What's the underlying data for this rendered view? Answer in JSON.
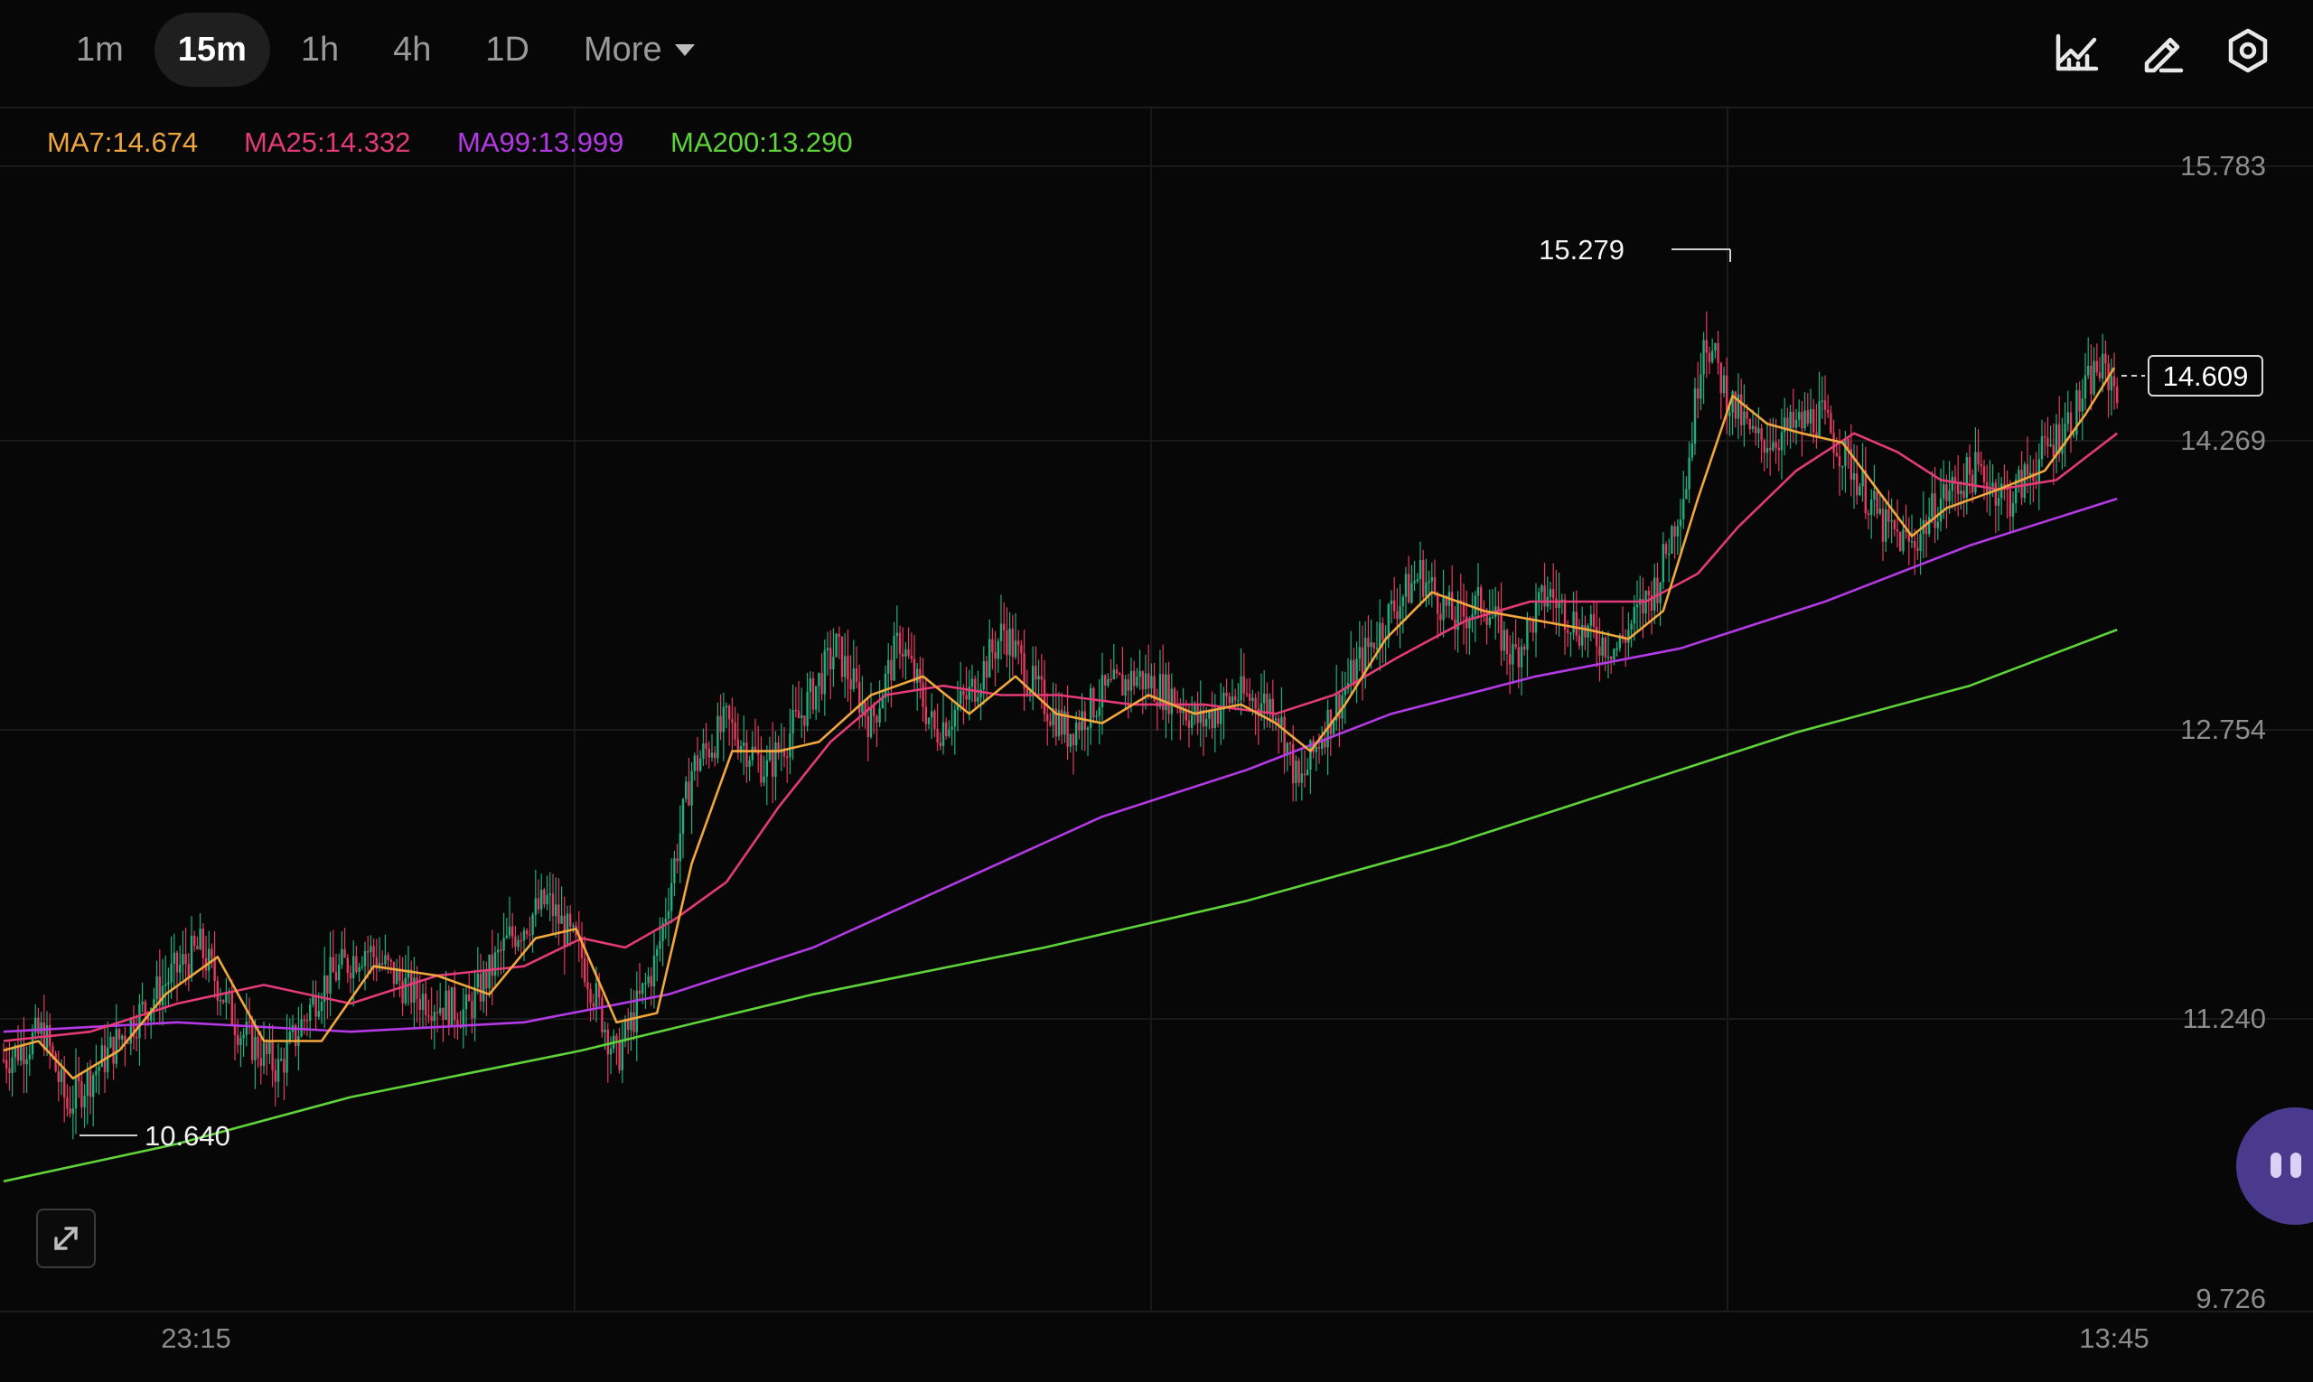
{
  "toolbar": {
    "timeframes": [
      "1m",
      "15m",
      "1h",
      "4h",
      "1D"
    ],
    "active": "15m",
    "more_label": "More",
    "icons": [
      "indicators-icon",
      "draw-icon",
      "settings-icon"
    ]
  },
  "colors": {
    "background": "#070707",
    "up": "#1fae7e",
    "down": "#e5395f",
    "ma7": "#f0a73c",
    "ma25": "#e33a78",
    "ma99": "#b43ae6",
    "ma200": "#5fd33a",
    "grid": "#1a1a1a"
  },
  "chart_data": {
    "type": "candlestick",
    "interval": "15m",
    "legend": [
      {
        "name": "MA7",
        "value": "14.674",
        "label": "MA7:14.674",
        "color": "#f0a73c"
      },
      {
        "name": "MA25",
        "value": "14.332",
        "label": "MA25:14.332",
        "color": "#e33a78"
      },
      {
        "name": "MA99",
        "value": "13.999",
        "label": "MA99:13.999",
        "color": "#b43ae6"
      },
      {
        "name": "MA200",
        "value": "13.290",
        "label": "MA200:13.290",
        "color": "#5fd33a"
      }
    ],
    "y_ticks": [
      "15.783",
      "14.269",
      "12.754",
      "11.240",
      "9.726"
    ],
    "ylim": [
      9.726,
      15.783
    ],
    "x_ticks": [
      "23:15",
      "13:45"
    ],
    "last_price": "14.609",
    "high_label": "15.279",
    "low_label": "10.640",
    "grid": true,
    "price_path": [
      [
        0,
        11.0
      ],
      [
        14,
        11.15
      ],
      [
        22,
        10.75
      ],
      [
        42,
        11.15
      ],
      [
        58,
        11.45
      ],
      [
        68,
        11.6
      ],
      [
        82,
        11.15
      ],
      [
        95,
        10.95
      ],
      [
        110,
        11.4
      ],
      [
        125,
        11.6
      ],
      [
        142,
        11.35
      ],
      [
        160,
        11.25
      ],
      [
        175,
        11.65
      ],
      [
        188,
        11.85
      ],
      [
        200,
        11.55
      ],
      [
        212,
        11.0
      ],
      [
        226,
        11.55
      ],
      [
        238,
        12.55
      ],
      [
        250,
        12.8
      ],
      [
        264,
        12.55
      ],
      [
        276,
        12.85
      ],
      [
        288,
        13.2
      ],
      [
        300,
        12.8
      ],
      [
        310,
        13.25
      ],
      [
        322,
        12.75
      ],
      [
        334,
        12.95
      ],
      [
        346,
        13.3
      ],
      [
        356,
        13.0
      ],
      [
        368,
        12.75
      ],
      [
        380,
        12.95
      ],
      [
        392,
        13.05
      ],
      [
        404,
        12.95
      ],
      [
        414,
        12.8
      ],
      [
        426,
        12.95
      ],
      [
        440,
        12.9
      ],
      [
        448,
        12.45
      ],
      [
        456,
        12.75
      ],
      [
        468,
        13.1
      ],
      [
        480,
        13.4
      ],
      [
        490,
        13.6
      ],
      [
        502,
        13.35
      ],
      [
        512,
        13.45
      ],
      [
        522,
        13.15
      ],
      [
        534,
        13.5
      ],
      [
        546,
        13.3
      ],
      [
        558,
        13.2
      ],
      [
        572,
        13.55
      ],
      [
        582,
        14.1
      ],
      [
        588,
        14.9
      ],
      [
        596,
        14.55
      ],
      [
        606,
        14.3
      ],
      [
        616,
        14.35
      ],
      [
        628,
        14.45
      ],
      [
        640,
        14.15
      ],
      [
        650,
        13.85
      ],
      [
        660,
        13.75
      ],
      [
        670,
        14.0
      ],
      [
        682,
        14.15
      ],
      [
        694,
        14.0
      ],
      [
        706,
        14.25
      ],
      [
        716,
        14.45
      ],
      [
        724,
        14.7
      ],
      [
        731,
        14.61
      ]
    ],
    "ma7": [
      [
        0,
        11.05
      ],
      [
        12,
        11.1
      ],
      [
        24,
        10.9
      ],
      [
        40,
        11.05
      ],
      [
        56,
        11.35
      ],
      [
        74,
        11.55
      ],
      [
        90,
        11.1
      ],
      [
        110,
        11.1
      ],
      [
        128,
        11.5
      ],
      [
        150,
        11.45
      ],
      [
        168,
        11.35
      ],
      [
        184,
        11.65
      ],
      [
        198,
        11.7
      ],
      [
        212,
        11.2
      ],
      [
        226,
        11.25
      ],
      [
        238,
        12.05
      ],
      [
        252,
        12.65
      ],
      [
        268,
        12.65
      ],
      [
        282,
        12.7
      ],
      [
        300,
        12.95
      ],
      [
        318,
        13.05
      ],
      [
        334,
        12.85
      ],
      [
        350,
        13.05
      ],
      [
        364,
        12.85
      ],
      [
        380,
        12.8
      ],
      [
        396,
        12.95
      ],
      [
        412,
        12.85
      ],
      [
        428,
        12.9
      ],
      [
        440,
        12.8
      ],
      [
        452,
        12.65
      ],
      [
        464,
        12.9
      ],
      [
        478,
        13.25
      ],
      [
        494,
        13.5
      ],
      [
        512,
        13.4
      ],
      [
        530,
        13.35
      ],
      [
        548,
        13.3
      ],
      [
        562,
        13.25
      ],
      [
        574,
        13.4
      ],
      [
        586,
        14.0
      ],
      [
        598,
        14.55
      ],
      [
        610,
        14.4
      ],
      [
        622,
        14.35
      ],
      [
        636,
        14.3
      ],
      [
        648,
        14.05
      ],
      [
        660,
        13.8
      ],
      [
        672,
        13.95
      ],
      [
        690,
        14.05
      ],
      [
        706,
        14.15
      ],
      [
        720,
        14.45
      ],
      [
        730,
        14.7
      ]
    ],
    "ma25": [
      [
        0,
        11.1
      ],
      [
        30,
        11.15
      ],
      [
        60,
        11.3
      ],
      [
        90,
        11.4
      ],
      [
        120,
        11.3
      ],
      [
        150,
        11.45
      ],
      [
        180,
        11.5
      ],
      [
        200,
        11.65
      ],
      [
        215,
        11.6
      ],
      [
        232,
        11.75
      ],
      [
        250,
        11.95
      ],
      [
        268,
        12.35
      ],
      [
        286,
        12.7
      ],
      [
        305,
        12.95
      ],
      [
        325,
        13.0
      ],
      [
        345,
        12.95
      ],
      [
        365,
        12.95
      ],
      [
        390,
        12.9
      ],
      [
        415,
        12.9
      ],
      [
        440,
        12.85
      ],
      [
        460,
        12.95
      ],
      [
        482,
        13.15
      ],
      [
        506,
        13.35
      ],
      [
        528,
        13.45
      ],
      [
        548,
        13.45
      ],
      [
        568,
        13.45
      ],
      [
        586,
        13.6
      ],
      [
        600,
        13.85
      ],
      [
        620,
        14.15
      ],
      [
        640,
        14.35
      ],
      [
        655,
        14.25
      ],
      [
        670,
        14.1
      ],
      [
        690,
        14.05
      ],
      [
        710,
        14.1
      ],
      [
        731,
        14.35
      ]
    ],
    "ma99": [
      [
        0,
        11.15
      ],
      [
        60,
        11.2
      ],
      [
        120,
        11.15
      ],
      [
        180,
        11.2
      ],
      [
        230,
        11.35
      ],
      [
        280,
        11.6
      ],
      [
        330,
        11.95
      ],
      [
        380,
        12.3
      ],
      [
        430,
        12.55
      ],
      [
        480,
        12.85
      ],
      [
        530,
        13.05
      ],
      [
        580,
        13.2
      ],
      [
        630,
        13.45
      ],
      [
        680,
        13.75
      ],
      [
        731,
        14.0
      ]
    ],
    "ma200": [
      [
        0,
        10.35
      ],
      [
        60,
        10.55
      ],
      [
        120,
        10.8
      ],
      [
        200,
        11.05
      ],
      [
        280,
        11.35
      ],
      [
        360,
        11.6
      ],
      [
        430,
        11.85
      ],
      [
        500,
        12.15
      ],
      [
        560,
        12.45
      ],
      [
        620,
        12.75
      ],
      [
        680,
        13.0
      ],
      [
        731,
        13.3
      ]
    ]
  }
}
